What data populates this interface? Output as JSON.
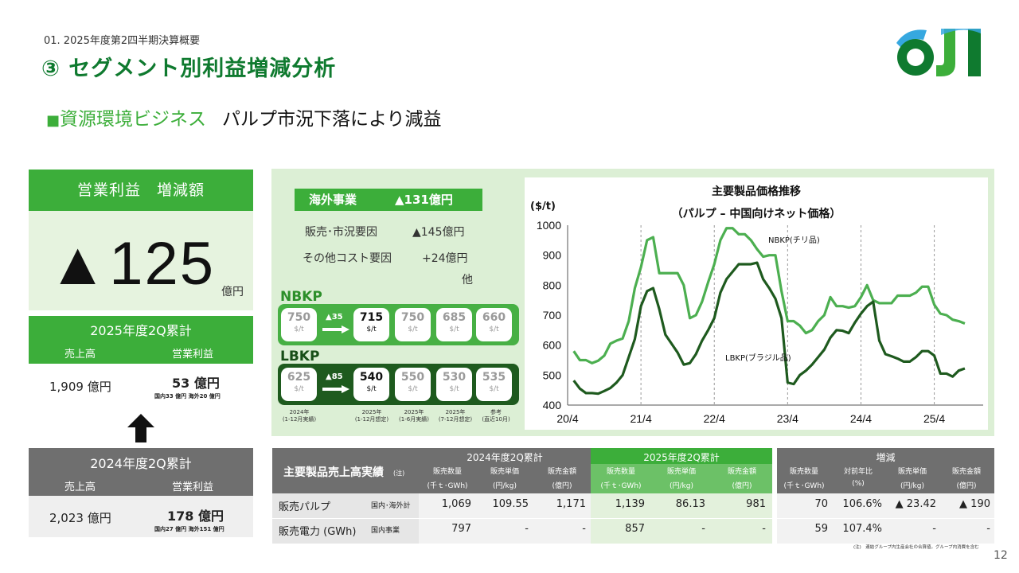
{
  "header": {
    "section": "01. 2025年度第2四半期決算概要",
    "title": "③ セグメント別利益増減分析",
    "subtitle_marker": "■",
    "subtitle_segment": "資源環境ビジネス",
    "subtitle_message": "パルプ市況下落により減益"
  },
  "logo": {
    "text": "OJI",
    "colors": [
      "#0f7a2f",
      "#3cae3a",
      "#36a8e0"
    ]
  },
  "operating_profit": {
    "heading": "営業利益　増減額",
    "value": "▲125",
    "unit": "億円"
  },
  "cum_2025": {
    "heading": "2025年度2Q累計",
    "col_sales": "売上高",
    "col_op": "営業利益",
    "sales": "1,909 億円",
    "op": "53 億円",
    "op_breakdown": "国内33 億円 海外20 億円"
  },
  "cum_2024": {
    "heading": "2024年度2Q累計",
    "col_sales": "売上高",
    "col_op": "営業利益",
    "sales": "2,023 億円",
    "op": "178 億円",
    "op_breakdown": "国内27 億円 海外151 億円"
  },
  "overseas": {
    "label": "海外事業",
    "value": "▲131億円",
    "factor1_label": "販売･市況要因",
    "factor1_value": "▲145億円",
    "factor2_label": "その他コスト要因",
    "factor2_value": "+24億円",
    "factor2_note": "他"
  },
  "nbkp": {
    "label": "NBKP",
    "unit": "$/t",
    "p2024": "750",
    "change": "▲35",
    "p2025": "715",
    "h1": "750",
    "h2": "685",
    "ref": "660"
  },
  "lbkp": {
    "label": "LBKP",
    "unit": "$/t",
    "p2024": "625",
    "change": "▲85",
    "p2025": "540",
    "h1": "550",
    "h2": "530",
    "ref": "535"
  },
  "price_columns": {
    "c1": [
      "2024年",
      "(1-12月実績)"
    ],
    "c2": [
      "2025年",
      "(1-12月想定)"
    ],
    "c3": [
      "2025年",
      "(1-6月実績)"
    ],
    "c4": [
      "2025年",
      "(7-12月想定)"
    ],
    "c5": [
      "参考",
      "(直近10月)"
    ]
  },
  "chart_data": {
    "type": "line",
    "title": "主要製品価格推移",
    "subtitle": "（パルプ – 中国向けネット価格）",
    "ylabel": "($/t)",
    "ylim": [
      400,
      1000
    ],
    "yticks": [
      400,
      500,
      600,
      700,
      800,
      900,
      1000
    ],
    "xticks": [
      "20/4",
      "21/4",
      "22/4",
      "23/4",
      "24/4",
      "25/4"
    ],
    "x_months_range": [
      0,
      68
    ],
    "grid": "vertical-dashed",
    "series": [
      {
        "name": "NBKP(チリ品)",
        "color": "#4caf50",
        "values": [
          580,
          550,
          550,
          540,
          548,
          565,
          605,
          615,
          622,
          680,
          790,
          860,
          950,
          960,
          840,
          840,
          840,
          840,
          800,
          690,
          700,
          745,
          810,
          870,
          950,
          990,
          990,
          970,
          970,
          950,
          920,
          895,
          900,
          900,
          780,
          680,
          680,
          665,
          640,
          650,
          680,
          700,
          760,
          730,
          730,
          725,
          730,
          760,
          800,
          750,
          740,
          740,
          740,
          765,
          765,
          765,
          775,
          795,
          795,
          735,
          705,
          700,
          685,
          680,
          672
        ]
      },
      {
        "name": "LBKP(ブラジル品)",
        "color": "#1e5a1e",
        "values": [
          482,
          455,
          440,
          440,
          438,
          447,
          457,
          475,
          500,
          560,
          620,
          730,
          780,
          790,
          720,
          635,
          605,
          575,
          535,
          540,
          570,
          615,
          650,
          690,
          775,
          820,
          845,
          870,
          870,
          870,
          875,
          820,
          790,
          755,
          690,
          475,
          470,
          500,
          515,
          535,
          560,
          585,
          625,
          650,
          648,
          640,
          675,
          705,
          730,
          745,
          615,
          570,
          563,
          555,
          545,
          545,
          560,
          580,
          580,
          565,
          505,
          505,
          495,
          515,
          522
        ]
      }
    ],
    "annotations": [
      "NBKP(チリ品)",
      "LBKP(ブラジル品)"
    ]
  },
  "table": {
    "title": "主要製品売上高実績",
    "title_note": "(注)",
    "group_2024": "2024年度2Q累計",
    "group_2025": "2025年度2Q累計",
    "group_diff": "増減",
    "sub_2024": [
      [
        "販売数量",
        "(千ｔ･GWh)"
      ],
      [
        "販売単価",
        "(円/kg)"
      ],
      [
        "販売金額",
        "(億円)"
      ]
    ],
    "sub_2025": [
      [
        "販売数量",
        "(千ｔ･GWh)"
      ],
      [
        "販売単価",
        "(円/kg)"
      ],
      [
        "販売金額",
        "(億円)"
      ]
    ],
    "sub_diff": [
      [
        "販売数量",
        "(千ｔ･GWh)"
      ],
      [
        "対前年比",
        "(%)"
      ],
      [
        "販売単価",
        "(円/kg)"
      ],
      [
        "販売金額",
        "(億円)"
      ]
    ],
    "rows": [
      {
        "name": "販売パルプ",
        "scope": "国内･海外計",
        "v2024": [
          "1,069",
          "109.55",
          "1,171"
        ],
        "v2025": [
          "1,139",
          "86.13",
          "981"
        ],
        "diff": [
          "70",
          "106.6%",
          "▲ 23.42",
          "▲ 190"
        ]
      },
      {
        "name": "販売電力 (GWh)",
        "scope": "国内事業",
        "v2024": [
          "797",
          "-",
          "-"
        ],
        "v2025": [
          "857",
          "-",
          "-"
        ],
        "diff": [
          "59",
          "107.4%",
          "-",
          "-"
        ]
      }
    ],
    "note": "(注)　連結グループ内生産会社の合算値。グループ内消費を含む"
  },
  "page_number": "12"
}
